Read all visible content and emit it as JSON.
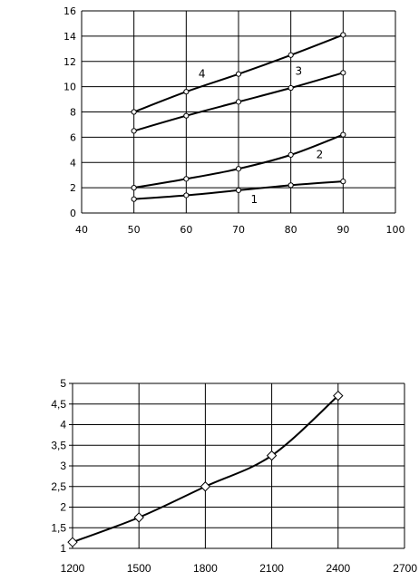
{
  "chart_data": [
    {
      "type": "line",
      "x": [
        50,
        60,
        70,
        80,
        90
      ],
      "xlim": [
        40,
        100
      ],
      "ylim": [
        0,
        16
      ],
      "xticks": [
        "40",
        "50",
        "60",
        "70",
        "80",
        "90",
        "100"
      ],
      "yticks": [
        "0",
        "2",
        "4",
        "6",
        "8",
        "10",
        "12",
        "14",
        "16"
      ],
      "grid": "horizontal and vertical",
      "series": [
        {
          "name": "1",
          "values": [
            1.1,
            1.4,
            1.8,
            2.2,
            2.5
          ]
        },
        {
          "name": "2",
          "values": [
            2.0,
            2.7,
            3.5,
            4.6,
            6.2
          ]
        },
        {
          "name": "3",
          "values": [
            6.5,
            7.7,
            8.8,
            9.9,
            11.1
          ]
        },
        {
          "name": "4",
          "values": [
            8.0,
            9.6,
            11.0,
            12.5,
            14.1
          ]
        }
      ]
    },
    {
      "type": "line",
      "x": [
        1200,
        1500,
        1800,
        2100,
        2400
      ],
      "xlim": [
        1200,
        2700
      ],
      "ylim": [
        1,
        5
      ],
      "xticks": [
        "1200",
        "1500",
        "1800",
        "2100",
        "2400",
        "2700"
      ],
      "yticks": [
        "1",
        "1,5",
        "2",
        "2,5",
        "3",
        "3,5",
        "4",
        "4,5",
        "5"
      ],
      "grid": "horizontal and vertical",
      "series": [
        {
          "values": [
            1.15,
            1.75,
            2.5,
            3.25,
            4.7
          ]
        }
      ]
    }
  ]
}
